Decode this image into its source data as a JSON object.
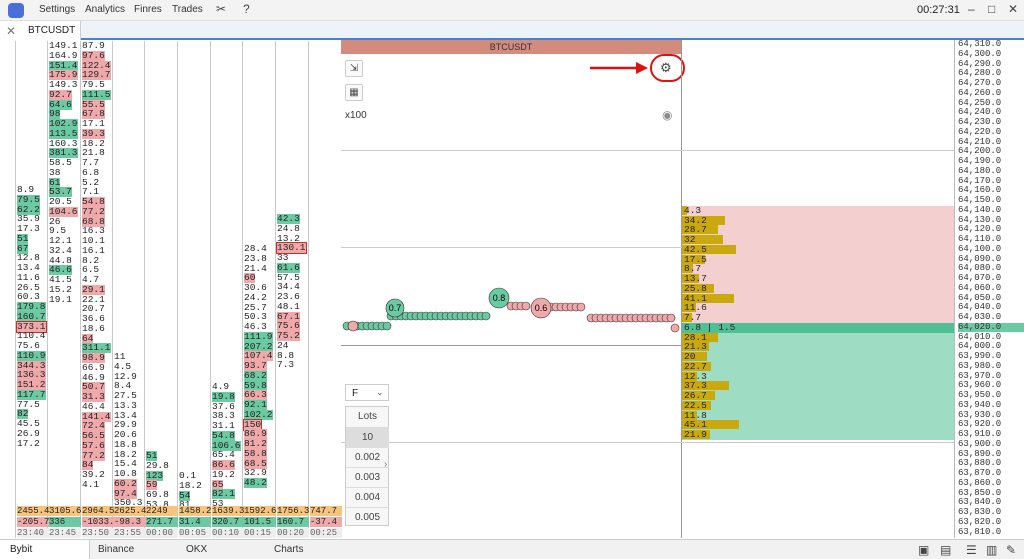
{
  "menubar": {
    "items": [
      "Settings",
      "Analytics",
      "Finres",
      "Trades"
    ],
    "time": "00:27:31"
  },
  "tab": {
    "label": "BTCUSDT"
  },
  "book": {
    "title": "BTCUSDT",
    "multiplier": "x100",
    "order_type": "F",
    "lots_label": "Lots",
    "lots": [
      "10",
      "0.002",
      "0.003",
      "0.004",
      "0.005"
    ]
  },
  "columns": [
    {
      "cells": [
        [
          "8.9",
          ""
        ],
        [
          "79.5",
          "g"
        ],
        [
          "62.2",
          "g"
        ],
        [
          "35.9",
          ""
        ],
        [
          "17.3",
          ""
        ],
        [
          "51",
          "g"
        ],
        [
          "67",
          "g"
        ],
        [
          "12.8",
          ""
        ],
        [
          "13.4",
          ""
        ],
        [
          "11.6",
          ""
        ],
        [
          "26.5",
          ""
        ],
        [
          "60.3",
          ""
        ],
        [
          "179.8",
          "g"
        ],
        [
          "160.7",
          "g"
        ],
        [
          "373.1",
          "h"
        ],
        [
          "110.4",
          ""
        ],
        [
          "75.6",
          ""
        ],
        [
          "110.9",
          "g"
        ],
        [
          "344.3",
          "r"
        ],
        [
          "136.3",
          "r"
        ],
        [
          "151.2",
          "r"
        ],
        [
          "117.7",
          "g"
        ],
        [
          "77.5",
          ""
        ],
        [
          "82",
          "g"
        ],
        [
          "45.5",
          ""
        ],
        [
          "26.9",
          ""
        ],
        [
          "17.2",
          ""
        ]
      ],
      "start": 185
    },
    {
      "cells": [
        [
          "149.1",
          ""
        ],
        [
          "164.9",
          ""
        ],
        [
          "151.4",
          "g"
        ],
        [
          "175.9",
          "r"
        ],
        [
          "149.3",
          ""
        ],
        [
          "92.7",
          "r"
        ],
        [
          "64.6",
          "g"
        ],
        [
          "98",
          "g"
        ],
        [
          "102.9",
          "g"
        ],
        [
          "113.5",
          "g"
        ],
        [
          "160.3",
          ""
        ],
        [
          "381.3",
          "g"
        ],
        [
          "58.5",
          ""
        ],
        [
          "38",
          ""
        ],
        [
          "61",
          "g"
        ],
        [
          "53.7",
          "g"
        ],
        [
          "20.5",
          ""
        ],
        [
          "104.6",
          "r"
        ],
        [
          "26",
          ""
        ],
        [
          "9.5",
          ""
        ],
        [
          "12.1",
          ""
        ],
        [
          "32.4",
          ""
        ],
        [
          "44.8",
          ""
        ],
        [
          "46.6",
          "g"
        ],
        [
          "41.5",
          ""
        ],
        [
          "15.2",
          ""
        ],
        [
          "19.1",
          ""
        ]
      ],
      "start": 41
    },
    {
      "cells": [
        [
          "87.9",
          ""
        ],
        [
          "97.6",
          "r"
        ],
        [
          "122.4",
          "r"
        ],
        [
          "129.7",
          "r"
        ],
        [
          "79.5",
          ""
        ],
        [
          "111.5",
          "g"
        ],
        [
          "55.5",
          "r"
        ],
        [
          "67.8",
          "r"
        ],
        [
          "17.1",
          ""
        ],
        [
          "39.3",
          "r"
        ],
        [
          "18.2",
          ""
        ],
        [
          "21.8",
          ""
        ],
        [
          "7.7",
          ""
        ],
        [
          "6.8",
          ""
        ],
        [
          "5.2",
          ""
        ],
        [
          "7.1",
          ""
        ],
        [
          "54.8",
          "r"
        ],
        [
          "77.2",
          "r"
        ],
        [
          "68.8",
          "r"
        ],
        [
          "16.3",
          ""
        ],
        [
          "10.1",
          ""
        ],
        [
          "16.1",
          ""
        ],
        [
          "8.2",
          ""
        ],
        [
          "6.5",
          ""
        ],
        [
          "4.7",
          ""
        ],
        [
          "29.1",
          "r"
        ],
        [
          "22.1",
          ""
        ],
        [
          "20.7",
          ""
        ],
        [
          "36.6",
          ""
        ],
        [
          "18.6",
          ""
        ],
        [
          "64",
          "r"
        ],
        [
          "311.1",
          "g"
        ],
        [
          "98.9",
          "r"
        ],
        [
          "66.9",
          ""
        ],
        [
          "46.9",
          ""
        ],
        [
          "50.7",
          "r"
        ],
        [
          "31.3",
          "r"
        ],
        [
          "46.4",
          ""
        ],
        [
          "141.4",
          "r"
        ],
        [
          "72.4",
          "r"
        ],
        [
          "56.5",
          "r"
        ],
        [
          "57.6",
          "r"
        ],
        [
          "77.2",
          "r"
        ],
        [
          "84",
          "r"
        ],
        [
          "39.2",
          ""
        ],
        [
          "4.1",
          ""
        ]
      ],
      "start": 41
    },
    {
      "cells": [
        [
          "11",
          ""
        ],
        [
          "4.5",
          ""
        ],
        [
          "12.9",
          ""
        ],
        [
          "8.4",
          ""
        ],
        [
          "27.5",
          ""
        ],
        [
          "13.3",
          ""
        ],
        [
          "13.4",
          ""
        ],
        [
          "29.9",
          ""
        ],
        [
          "20.6",
          ""
        ],
        [
          "18.8",
          ""
        ],
        [
          "18.2",
          ""
        ],
        [
          "15.4",
          ""
        ],
        [
          "10.8",
          ""
        ],
        [
          "60.2",
          "r"
        ],
        [
          "97.4",
          "r"
        ],
        [
          "350.3",
          ""
        ]
      ],
      "start": 352
    },
    {
      "cells": [
        [
          "51",
          "g"
        ],
        [
          "29.8",
          ""
        ],
        [
          "123",
          "g"
        ],
        [
          "59",
          "r"
        ],
        [
          "69.8",
          ""
        ],
        [
          "53.8",
          ""
        ]
      ],
      "start": 451
    },
    {
      "cells": [
        [
          "0.1",
          ""
        ],
        [
          "18.2",
          ""
        ],
        [
          "54",
          "g"
        ],
        [
          "81",
          ""
        ]
      ],
      "start": 471
    },
    {
      "cells": [
        [
          "4.9",
          ""
        ],
        [
          "19.8",
          "g"
        ],
        [
          "37.6",
          ""
        ],
        [
          "38.3",
          ""
        ],
        [
          "31.1",
          ""
        ],
        [
          "54.8",
          "g"
        ],
        [
          "106.6",
          "g"
        ],
        [
          "65.4",
          ""
        ],
        [
          "86.6",
          "r"
        ],
        [
          "19.2",
          ""
        ],
        [
          "65",
          "r"
        ],
        [
          "82.1",
          "g"
        ],
        [
          "53",
          ""
        ]
      ],
      "start": 382
    },
    {
      "cells": [
        [
          "28.4",
          ""
        ],
        [
          "23.8",
          ""
        ],
        [
          "21.4",
          ""
        ],
        [
          "60",
          "r"
        ],
        [
          "30.6",
          ""
        ],
        [
          "24.2",
          ""
        ],
        [
          "25.7",
          ""
        ],
        [
          "50.3",
          ""
        ],
        [
          "46.3",
          ""
        ],
        [
          "111.9",
          "g"
        ],
        [
          "207.2",
          "g"
        ],
        [
          "107.4",
          "r"
        ],
        [
          "93.7",
          "r"
        ],
        [
          "68.2",
          "g"
        ],
        [
          "59.8",
          "g"
        ],
        [
          "66.3",
          "r"
        ],
        [
          "92.1",
          "g"
        ],
        [
          "102.2",
          "g"
        ],
        [
          "150",
          "h"
        ],
        [
          "86.9",
          "r"
        ],
        [
          "81.2",
          "r"
        ],
        [
          "58.8",
          "r"
        ],
        [
          "68.5",
          "r"
        ],
        [
          "32.9",
          ""
        ],
        [
          "48.2",
          "g"
        ]
      ],
      "start": 244
    },
    {
      "cells": [
        [
          "42.3",
          "g"
        ],
        [
          "24.8",
          ""
        ],
        [
          "13.2",
          ""
        ],
        [
          "130.1",
          "h"
        ],
        [
          "33",
          ""
        ],
        [
          "61.6",
          "g"
        ],
        [
          "57.5",
          ""
        ],
        [
          "34.4",
          ""
        ],
        [
          "23.6",
          ""
        ],
        [
          "48.1",
          ""
        ],
        [
          "67.1",
          "r"
        ],
        [
          "75.6",
          "r"
        ],
        [
          "75.2",
          "r"
        ],
        [
          "24",
          ""
        ],
        [
          "8.8",
          ""
        ],
        [
          "7.3",
          ""
        ]
      ],
      "start": 214
    }
  ],
  "footer": {
    "row1": [
      "2455.4",
      "3105.6",
      "2964.5",
      "2625.4",
      "2249",
      "1458.2",
      "1639.3",
      "1592.6",
      "1756.3",
      "747.7"
    ],
    "row2": [
      "-205.7",
      "336",
      "-1033.",
      "-98.3",
      "271.7",
      "31.4",
      "320.7",
      "101.5",
      "160.7",
      "-37.4"
    ],
    "times": [
      "23:40",
      "23:45",
      "23:50",
      "23:55",
      "00:00",
      "00:05",
      "00:10",
      "00:15",
      "00:20",
      "00:25"
    ]
  },
  "prices": [
    "64,310.0",
    "64,300.0",
    "64,290.0",
    "64,280.0",
    "64,270.0",
    "64,260.0",
    "64,250.0",
    "64,240.0",
    "64,230.0",
    "64,220.0",
    "64,210.0",
    "64,200.0",
    "64,190.0",
    "64,180.0",
    "64,170.0",
    "64,160.0",
    "64,150.0",
    "64,140.0",
    "64,130.0",
    "64,120.0",
    "64,110.0",
    "64,100.0",
    "64,090.0",
    "64,080.0",
    "64,070.0",
    "64,060.0",
    "64,050.0",
    "64,040.0",
    "64,030.0",
    "64,020.0",
    "64,010.0",
    "64,000.0",
    "63,990.0",
    "63,980.0",
    "63,970.0",
    "63,960.0",
    "63,950.0",
    "63,940.0",
    "63,930.0",
    "63,920.0",
    "63,910.0",
    "63,900.0",
    "63,890.0",
    "63,880.0",
    "63,870.0",
    "63,860.0",
    "63,850.0",
    "63,840.0",
    "63,830.0",
    "63,820.0",
    "63,810.0"
  ],
  "asks": [
    [
      "4.3",
      0.05
    ],
    [
      "34.2",
      0.48
    ],
    [
      "28.7",
      0.4
    ],
    [
      "32",
      0.45
    ],
    [
      "42.5",
      0.6
    ],
    [
      "17.5",
      0.25
    ],
    [
      "8.7",
      0.12
    ],
    [
      "13.7",
      0.19
    ],
    [
      "25.8",
      0.36
    ],
    [
      "41.1",
      0.58
    ],
    [
      "11.6",
      0.16
    ],
    [
      "7.7",
      0.11
    ]
  ],
  "spread": "6.8 | 1.5",
  "bids": [
    [
      "28.1",
      0.4
    ],
    [
      "21.3",
      0.3
    ],
    [
      "20",
      0.28
    ],
    [
      "22.7",
      0.32
    ],
    [
      "12.3",
      0.17
    ],
    [
      "37.3",
      0.52
    ],
    [
      "26.7",
      0.37
    ],
    [
      "22.5",
      0.32
    ],
    [
      "11.8",
      0.17
    ],
    [
      "45.1",
      0.63
    ],
    [
      "21.9",
      0.31
    ]
  ],
  "trades_labels": [
    "0.7",
    "0.8",
    "0.6"
  ],
  "bottom": {
    "tabs": [
      "Bybit",
      "Binance",
      "OKX",
      "Charts"
    ]
  }
}
